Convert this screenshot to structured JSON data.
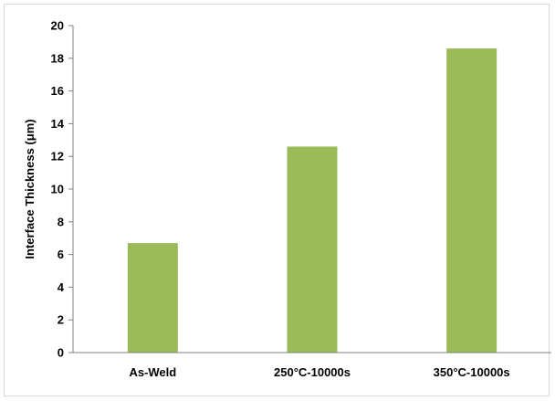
{
  "chart_data": {
    "type": "bar",
    "title": "",
    "xlabel": "",
    "ylabel": "Interface Thickness (μm)",
    "categories": [
      "As-Weld",
      "250°C-10000s",
      "350°C-10000s"
    ],
    "values": [
      6.7,
      12.6,
      18.6
    ],
    "ylim": [
      0,
      20
    ],
    "yticks": [
      0,
      2,
      4,
      6,
      8,
      10,
      12,
      14,
      16,
      18,
      20
    ],
    "grid": false,
    "legend": "none",
    "colors": {
      "bar": "#9bbb59",
      "axis": "#808080",
      "frame": "#d9d9d9"
    }
  }
}
